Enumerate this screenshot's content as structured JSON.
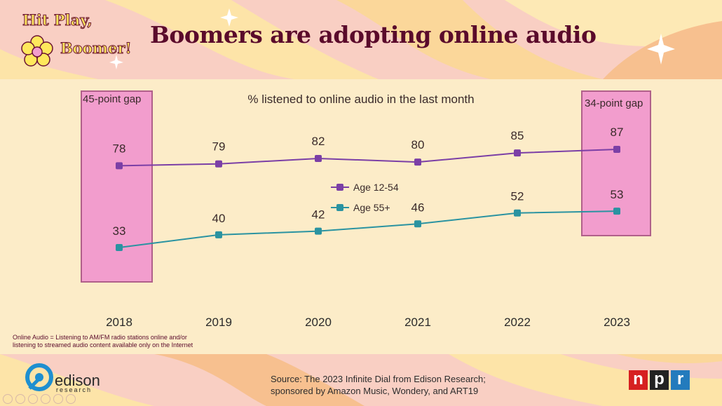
{
  "header": {
    "title": "Boomers are adopting online audio",
    "logo_line1": "Hit Play,",
    "logo_line2": "Boomer!"
  },
  "chart_data": {
    "type": "line",
    "title": "% listened to online audio in the last month",
    "categories": [
      "2018",
      "2019",
      "2020",
      "2021",
      "2022",
      "2023"
    ],
    "series": [
      {
        "name": "Age 12-54",
        "values": [
          78,
          79,
          82,
          80,
          85,
          87
        ],
        "color": "#7b3fa6"
      },
      {
        "name": "Age 55+",
        "values": [
          33,
          40,
          42,
          46,
          52,
          53
        ],
        "color": "#2a93a1"
      }
    ],
    "annotations": [
      {
        "label": "45-point gap",
        "category": "2018"
      },
      {
        "label": "34-point gap",
        "category": "2023"
      }
    ],
    "highlight_color": "#f29dcd",
    "grid": false,
    "legend_position": "center"
  },
  "footnote": "Online Audio = Listening to AM/FM radio stations online and/or listening to streamed audio content available only on the Internet",
  "source": {
    "line1": "Source: The 2023 Infinite Dial from Edison Research;",
    "line2": "sponsored by Amazon Music, Wondery, and ART19"
  },
  "branding": {
    "edison_name": "edison",
    "edison_sub": "research",
    "npr_letters": [
      "n",
      "p",
      "r"
    ],
    "npr_colors": [
      "#d62021",
      "#222222",
      "#237bbd"
    ]
  }
}
